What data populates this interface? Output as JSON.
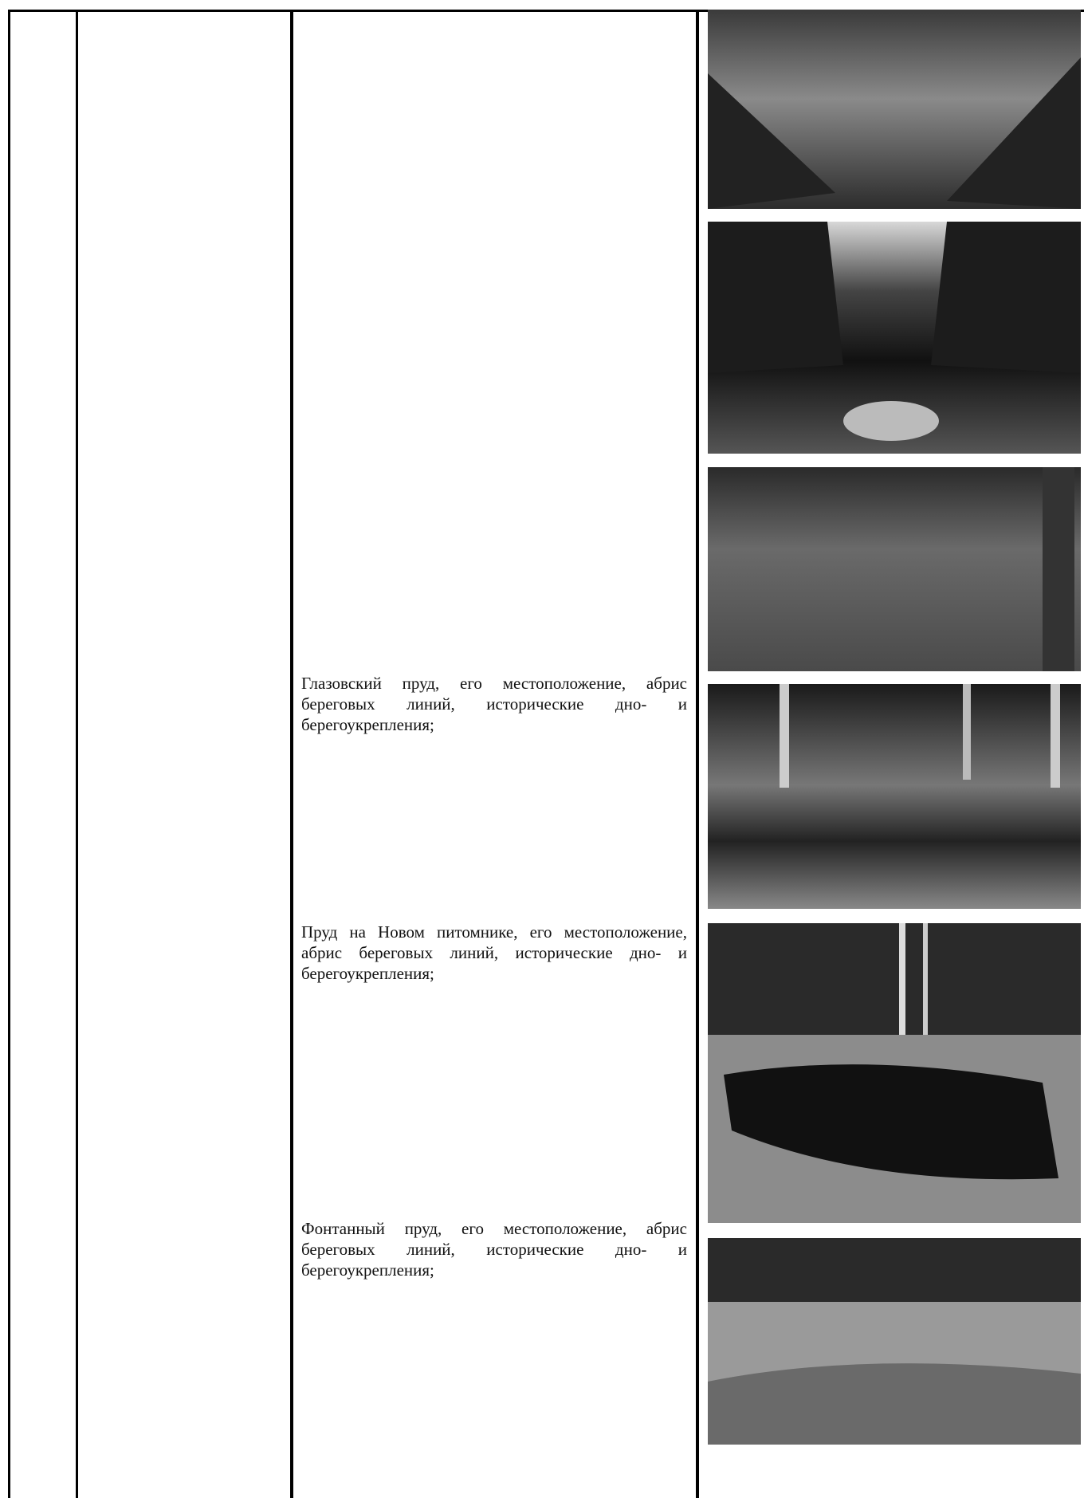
{
  "table": {
    "cells": [
      "Глазовский пруд, его местоположение, абрис береговых линий, исторические дно- и берегоукрепления;",
      "Пруд на Новом питомнике, его местоположение, абрис береговых линий, исторические дно- и берегоукрепления;",
      "Фонтанный пруд, его местоположение, абрис береговых линий, исторические дно- и берегоукрепления;"
    ]
  }
}
